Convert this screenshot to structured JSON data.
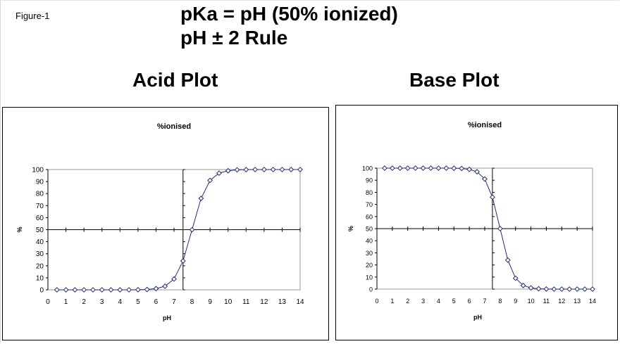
{
  "figure_label": "Figure-1",
  "headline": {
    "line1": "pKa = pH  (50% ionized)",
    "line2": "pH ± 2 Rule"
  },
  "plots": {
    "acid_title": "Acid Plot",
    "base_title": "Base Plot"
  },
  "chart_data": [
    {
      "type": "line",
      "title": "%ionised",
      "xlabel": "pH",
      "ylabel": "%",
      "xlim": [
        0,
        14
      ],
      "ylim": [
        0,
        100
      ],
      "xticks": [
        0,
        1,
        2,
        3,
        4,
        5,
        6,
        7,
        8,
        9,
        10,
        11,
        12,
        13,
        14
      ],
      "yticks": [
        0,
        10,
        20,
        30,
        40,
        50,
        60,
        70,
        80,
        90,
        100
      ],
      "reference_lines": {
        "x": 7.5,
        "y": 50
      },
      "grid": false,
      "legend": "none",
      "marker": "diamond",
      "series_color": "#1f2a7a",
      "series": [
        {
          "x": [
            0.5,
            1,
            1.5,
            2,
            2.5,
            3,
            3.5,
            4,
            4.5,
            5,
            5.5,
            6,
            6.5,
            7,
            7.5,
            8,
            8.5,
            9,
            9.5,
            10,
            10.5,
            11,
            11.5,
            12,
            12.5,
            13,
            13.5,
            14
          ],
          "values": [
            0,
            0,
            0,
            0,
            0,
            0,
            0,
            0,
            0,
            0.1,
            0.3,
            1,
            3,
            9,
            24,
            50,
            76,
            91,
            97,
            99,
            99.7,
            99.9,
            100,
            100,
            100,
            100,
            100,
            100
          ]
        }
      ]
    },
    {
      "type": "line",
      "title": "%ionised",
      "xlabel": "pH",
      "ylabel": "%",
      "xlim": [
        0,
        14
      ],
      "ylim": [
        0,
        100
      ],
      "xticks": [
        0,
        1,
        2,
        3,
        4,
        5,
        6,
        7,
        8,
        9,
        10,
        11,
        12,
        13,
        14
      ],
      "yticks": [
        0,
        10,
        20,
        30,
        40,
        50,
        60,
        70,
        80,
        90,
        100
      ],
      "reference_lines": {
        "x": 7.5,
        "y": 50
      },
      "grid": false,
      "legend": "none",
      "marker": "diamond",
      "series_color": "#1f2a7a",
      "series": [
        {
          "x": [
            0.5,
            1,
            1.5,
            2,
            2.5,
            3,
            3.5,
            4,
            4.5,
            5,
            5.5,
            6,
            6.5,
            7,
            7.5,
            8,
            8.5,
            9,
            9.5,
            10,
            10.5,
            11,
            11.5,
            12,
            12.5,
            13,
            13.5,
            14
          ],
          "values": [
            100,
            100,
            100,
            100,
            100,
            100,
            100,
            100,
            100,
            99.9,
            99.7,
            99,
            97,
            91,
            76,
            50,
            24,
            9,
            3,
            1,
            0.3,
            0.1,
            0,
            0,
            0,
            0,
            0,
            0
          ]
        }
      ]
    }
  ]
}
